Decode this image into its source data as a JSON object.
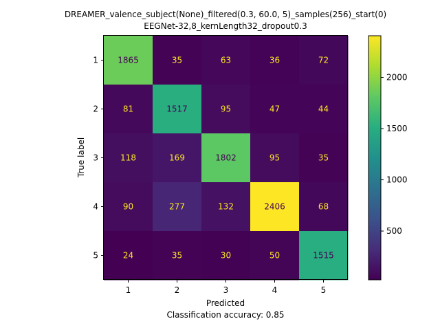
{
  "chart_data": {
    "type": "heatmap",
    "title_line1": "DREAMER_valence_subject(None)_filtered(0.3, 60.0, 5)_samples(256)_start(0)",
    "title_line2": "EEGNet-32,8_kernLength32_dropout0.3",
    "xlabel": "Predicted",
    "ylabel": "True label",
    "footer": "Classification accuracy: 0.85",
    "x_categories": [
      "1",
      "2",
      "3",
      "4",
      "5"
    ],
    "y_categories": [
      "1",
      "2",
      "3",
      "4",
      "5"
    ],
    "matrix": [
      [
        1865,
        35,
        63,
        36,
        72
      ],
      [
        81,
        1517,
        95,
        47,
        44
      ],
      [
        118,
        169,
        1802,
        95,
        35
      ],
      [
        90,
        277,
        132,
        2406,
        68
      ],
      [
        24,
        35,
        30,
        50,
        1515
      ]
    ],
    "colormap": "viridis",
    "color_range": [
      24,
      2406
    ],
    "colorbar_ticks": [
      "500",
      "1000",
      "1500",
      "2000"
    ],
    "colorbar_tick_values": [
      500,
      1000,
      1500,
      2000
    ],
    "text_color_light": "#fde725",
    "text_color_dark": "#440154"
  }
}
